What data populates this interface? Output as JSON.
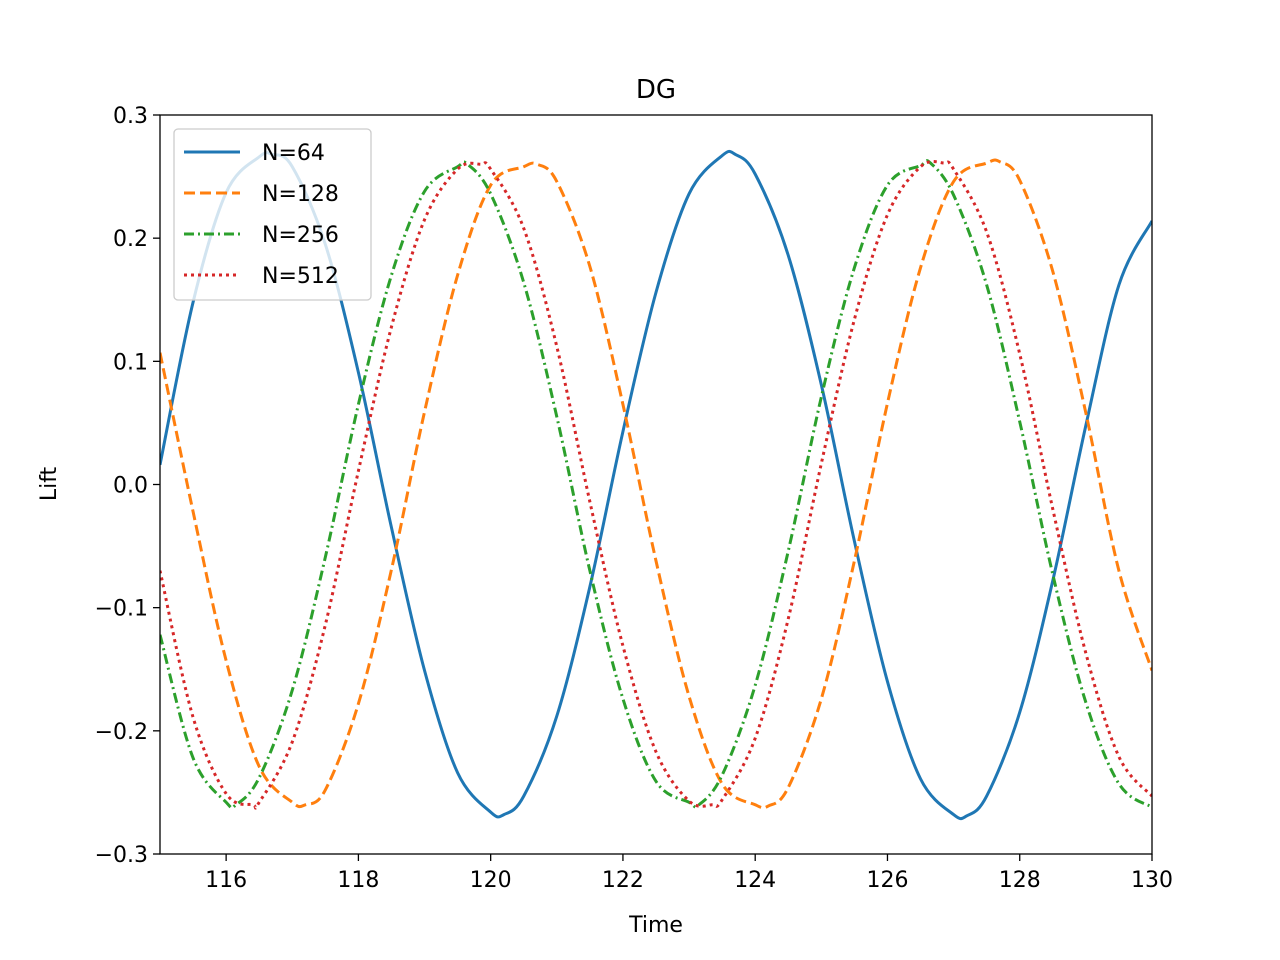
{
  "chart_data": {
    "type": "line",
    "title": "DG",
    "xlabel": "Time",
    "ylabel": "Lift",
    "xlim": [
      115,
      130
    ],
    "ylim": [
      -0.3,
      0.3
    ],
    "x_ticks": [
      116,
      118,
      120,
      122,
      124,
      126,
      128,
      130
    ],
    "x_tick_labels": [
      "116",
      "118",
      "120",
      "122",
      "124",
      "126",
      "128",
      "130"
    ],
    "y_ticks": [
      -0.3,
      -0.2,
      -0.1,
      0.0,
      0.1,
      0.2,
      0.3
    ],
    "y_tick_labels": [
      "−0.3",
      "−0.2",
      "−0.1",
      "0.0",
      "0.1",
      "0.2",
      "0.3"
    ],
    "grid": false,
    "legend_position": "top-left",
    "series": [
      {
        "name": "N=64",
        "color": "#1f77b4",
        "style": "solid",
        "x": [
          115.0,
          115.5,
          116.0,
          116.5,
          116.7,
          117.0,
          117.5,
          118.0,
          118.5,
          119.0,
          119.5,
          120.0,
          120.2,
          120.5,
          121.0,
          121.5,
          122.0,
          122.5,
          123.0,
          123.5,
          123.7,
          124.0,
          124.5,
          125.0,
          125.5,
          126.0,
          126.5,
          127.0,
          127.2,
          127.5,
          128.0,
          128.5,
          129.0,
          129.5,
          130.0
        ],
        "values": [
          0.016,
          0.148,
          0.237,
          0.266,
          0.268,
          0.258,
          0.195,
          0.091,
          -0.035,
          -0.151,
          -0.234,
          -0.266,
          -0.268,
          -0.253,
          -0.188,
          -0.083,
          0.043,
          0.156,
          0.236,
          0.267,
          0.268,
          0.252,
          0.186,
          0.081,
          -0.046,
          -0.16,
          -0.239,
          -0.268,
          -0.269,
          -0.253,
          -0.185,
          -0.078,
          0.048,
          0.162,
          0.214
        ]
      },
      {
        "name": "N=128",
        "color": "#ff7f0e",
        "style": "dashed",
        "x": [
          115.0,
          115.5,
          116.0,
          116.5,
          117.0,
          117.2,
          117.5,
          118.0,
          118.5,
          119.0,
          119.5,
          120.0,
          120.5,
          120.7,
          121.0,
          121.5,
          122.0,
          122.5,
          123.0,
          123.5,
          124.0,
          124.2,
          124.5,
          125.0,
          125.5,
          126.0,
          126.5,
          127.0,
          127.5,
          127.7,
          128.0,
          128.5,
          129.0,
          129.5,
          130.0
        ],
        "values": [
          0.107,
          -0.022,
          -0.143,
          -0.229,
          -0.258,
          -0.26,
          -0.248,
          -0.178,
          -0.069,
          0.059,
          0.17,
          0.243,
          0.258,
          0.26,
          0.246,
          0.177,
          0.065,
          -0.062,
          -0.172,
          -0.243,
          -0.26,
          -0.261,
          -0.246,
          -0.174,
          -0.062,
          0.066,
          0.176,
          0.246,
          0.261,
          0.262,
          0.247,
          0.173,
          0.058,
          -0.07,
          -0.151
        ]
      },
      {
        "name": "N=256",
        "color": "#2ca02c",
        "style": "dashdot",
        "x": [
          115.0,
          115.5,
          116.0,
          116.15,
          116.5,
          117.0,
          117.5,
          118.0,
          118.5,
          119.0,
          119.5,
          119.65,
          120.0,
          120.5,
          121.0,
          121.5,
          122.0,
          122.5,
          123.0,
          123.15,
          123.5,
          124.0,
          124.5,
          125.0,
          125.5,
          126.0,
          126.5,
          126.65,
          127.0,
          127.5,
          128.0,
          128.5,
          129.0,
          129.5,
          130.0
        ],
        "values": [
          -0.122,
          -0.222,
          -0.258,
          -0.26,
          -0.238,
          -0.167,
          -0.059,
          0.065,
          0.17,
          0.238,
          0.258,
          0.26,
          0.236,
          0.164,
          0.055,
          -0.07,
          -0.174,
          -0.241,
          -0.258,
          -0.26,
          -0.236,
          -0.163,
          -0.054,
          0.071,
          0.176,
          0.243,
          0.259,
          0.261,
          0.235,
          0.162,
          0.051,
          -0.073,
          -0.177,
          -0.243,
          -0.262
        ]
      },
      {
        "name": "N=512",
        "color": "#d62728",
        "style": "dotted",
        "x": [
          115.0,
          115.5,
          116.0,
          116.4,
          116.5,
          117.0,
          117.5,
          118.0,
          118.5,
          119.0,
          119.5,
          119.85,
          120.0,
          120.5,
          121.0,
          121.5,
          122.0,
          122.5,
          123.0,
          123.35,
          123.5,
          124.0,
          124.5,
          125.0,
          125.5,
          126.0,
          126.5,
          126.85,
          127.0,
          127.5,
          128.0,
          128.5,
          129.0,
          129.5,
          130.0
        ],
        "values": [
          -0.07,
          -0.189,
          -0.251,
          -0.26,
          -0.258,
          -0.209,
          -0.114,
          0.011,
          0.128,
          0.215,
          0.256,
          0.26,
          0.256,
          0.208,
          0.112,
          -0.014,
          -0.131,
          -0.217,
          -0.257,
          -0.26,
          -0.256,
          -0.206,
          -0.109,
          0.017,
          0.134,
          0.219,
          0.258,
          0.261,
          0.256,
          0.205,
          0.106,
          -0.02,
          -0.137,
          -0.221,
          -0.253
        ]
      }
    ]
  }
}
